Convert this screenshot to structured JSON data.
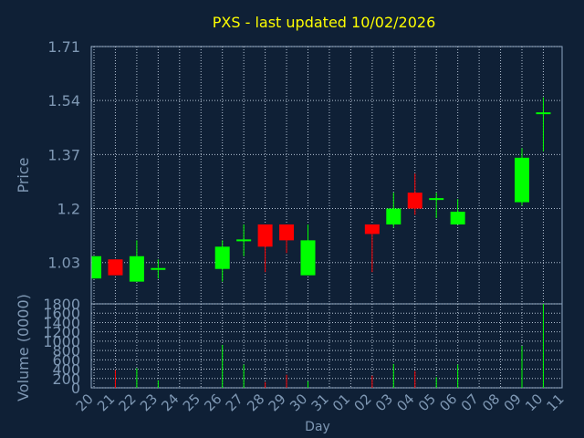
{
  "chart_data": {
    "type": "candlestick",
    "title": "PXS - last updated 10/02/2026",
    "xlabel": "Day",
    "price_panel": {
      "ylabel": "Price",
      "ylim": [
        0.9,
        1.71
      ],
      "yticks": [
        "1.71",
        "1.54",
        "1.37",
        "1.2",
        "1.03"
      ],
      "ytick_values": [
        1.71,
        1.54,
        1.37,
        1.2,
        1.03
      ]
    },
    "volume_panel": {
      "ylabel": "Volume (0000)",
      "ylim": [
        0,
        1800
      ],
      "yticks": [
        "1800",
        "1600",
        "1400",
        "1200",
        "1000",
        "800",
        "600",
        "400",
        "200",
        "0"
      ],
      "ytick_values": [
        1800,
        1600,
        1400,
        1200,
        1000,
        800,
        600,
        400,
        200,
        0
      ]
    },
    "x_labels": [
      "20",
      "21",
      "22",
      "23",
      "24",
      "25",
      "26",
      "27",
      "28",
      "29",
      "30",
      "31",
      "01",
      "02",
      "03",
      "04",
      "05",
      "06",
      "07",
      "08",
      "09",
      "10",
      "11"
    ],
    "grid": true,
    "colors": {
      "background": "#0f2036",
      "axis": "#8ea6c2",
      "grid": "#b5c3d4",
      "title": "#ffff00",
      "label": "#7f98b4",
      "up": "#00ff00",
      "down": "#ff0000"
    },
    "candles": [
      {
        "day": "20",
        "open": 0.98,
        "high": 1.05,
        "low": 0.98,
        "close": 1.05
      },
      {
        "day": "21",
        "open": 1.04,
        "high": 1.04,
        "low": 0.99,
        "close": 0.99
      },
      {
        "day": "22",
        "open": 0.97,
        "high": 1.1,
        "low": 0.97,
        "close": 1.05
      },
      {
        "day": "23",
        "open": 1.01,
        "high": 1.04,
        "low": 0.98,
        "close": 1.01
      },
      {
        "day": "26",
        "open": 1.01,
        "high": 1.1,
        "low": 0.97,
        "close": 1.08
      },
      {
        "day": "27",
        "open": 1.1,
        "high": 1.15,
        "low": 1.05,
        "close": 1.1
      },
      {
        "day": "28",
        "open": 1.15,
        "high": 1.15,
        "low": 1.0,
        "close": 1.08
      },
      {
        "day": "29",
        "open": 1.15,
        "high": 1.15,
        "low": 1.06,
        "close": 1.1
      },
      {
        "day": "30",
        "open": 0.99,
        "high": 1.15,
        "low": 0.99,
        "close": 1.1
      },
      {
        "day": "02",
        "open": 1.15,
        "high": 1.15,
        "low": 1.0,
        "close": 1.12
      },
      {
        "day": "03",
        "open": 1.15,
        "high": 1.25,
        "low": 1.14,
        "close": 1.2
      },
      {
        "day": "04",
        "open": 1.25,
        "high": 1.31,
        "low": 1.18,
        "close": 1.2
      },
      {
        "day": "05",
        "open": 1.23,
        "high": 1.25,
        "low": 1.17,
        "close": 1.23
      },
      {
        "day": "06",
        "open": 1.15,
        "high": 1.23,
        "low": 1.15,
        "close": 1.19
      },
      {
        "day": "09",
        "open": 1.22,
        "high": 1.39,
        "low": 1.21,
        "close": 1.36
      },
      {
        "day": "10",
        "open": 1.5,
        "high": 1.55,
        "low": 1.38,
        "close": 1.5
      }
    ],
    "volume": [
      {
        "day": "21",
        "value": 380
      },
      {
        "day": "22",
        "value": 420
      },
      {
        "day": "23",
        "value": 160
      },
      {
        "day": "26",
        "value": 920
      },
      {
        "day": "27",
        "value": 500
      },
      {
        "day": "28",
        "value": 120
      },
      {
        "day": "29",
        "value": 280
      },
      {
        "day": "30",
        "value": 140
      },
      {
        "day": "02",
        "value": 260
      },
      {
        "day": "03",
        "value": 510
      },
      {
        "day": "04",
        "value": 360
      },
      {
        "day": "05",
        "value": 230
      },
      {
        "day": "06",
        "value": 500
      },
      {
        "day": "09",
        "value": 900
      },
      {
        "day": "10",
        "value": 1800
      }
    ]
  }
}
